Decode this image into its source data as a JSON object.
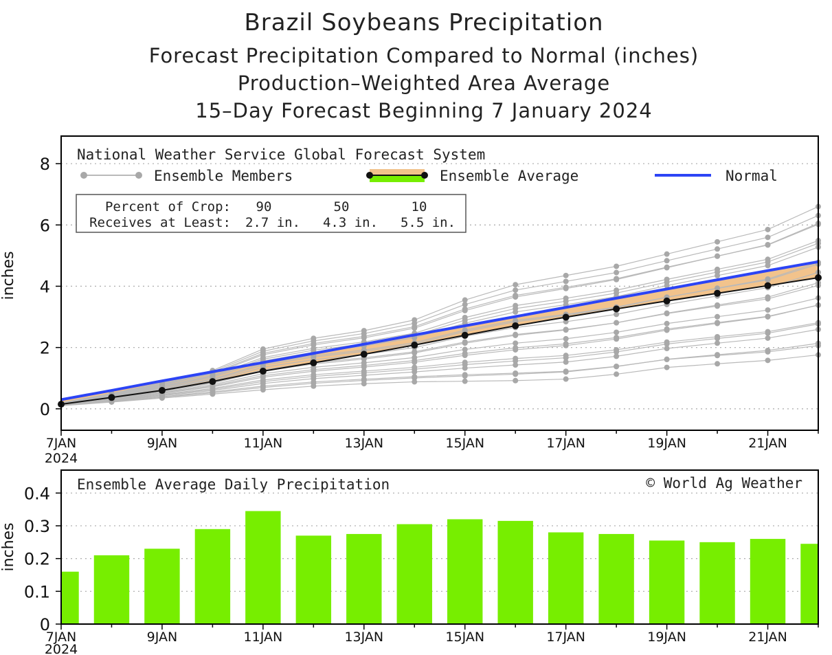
{
  "chart_data": [
    {
      "type": "line",
      "title": "Brazil Soybeans Precipitation",
      "subtitle_lines": [
        "Forecast Precipitation Compared to Normal (inches)",
        "Production–Weighted Area Average",
        "15–Day Forecast Beginning 7 January 2024"
      ],
      "ylabel": "inches",
      "ylim": [
        -0.7,
        8.9
      ],
      "yticks": [
        "0",
        "2",
        "4",
        "6",
        "8"
      ],
      "x_day_range": [
        7,
        22
      ],
      "xtick_labels": [
        "7JAN",
        "9JAN",
        "11JAN",
        "13JAN",
        "15JAN",
        "17JAN",
        "19JAN",
        "21JAN"
      ],
      "xtick_year": "2024",
      "legend": {
        "source": "National Weather Service Global Forecast System",
        "members_label": "Ensemble Members",
        "average_label": "Ensemble Average",
        "normal_label": "Normal"
      },
      "crop_table": {
        "row1_label": "Percent of Crop:",
        "row2_label": "Receives at Least:",
        "percents": [
          "90",
          "50",
          "10"
        ],
        "amounts": [
          "2.7 in.",
          "4.3 in.",
          "5.5 in."
        ]
      },
      "x": [
        7,
        8,
        9,
        10,
        11,
        12,
        13,
        14,
        15,
        16,
        17,
        18,
        19,
        20,
        21,
        22
      ],
      "series": [
        {
          "name": "Ensemble Average",
          "values": [
            0.15,
            0.37,
            0.6,
            0.89,
            1.23,
            1.5,
            1.78,
            2.08,
            2.4,
            2.71,
            2.99,
            3.26,
            3.52,
            3.77,
            4.02,
            4.28
          ]
        },
        {
          "name": "Normal",
          "values": [
            0.3,
            0.6,
            0.91,
            1.21,
            1.51,
            1.81,
            2.11,
            2.41,
            2.71,
            3.01,
            3.31,
            3.61,
            3.91,
            4.21,
            4.51,
            4.8
          ]
        },
        {
          "name": "Ensemble Max",
          "values": [
            0.2,
            0.5,
            0.85,
            1.25,
            1.95,
            2.3,
            2.55,
            2.9,
            3.55,
            4.05,
            4.35,
            4.65,
            5.05,
            5.45,
            5.85,
            6.6
          ]
        },
        {
          "name": "Ensemble Min",
          "values": [
            0.1,
            0.22,
            0.35,
            0.48,
            0.62,
            0.74,
            0.82,
            0.88,
            0.9,
            0.92,
            0.97,
            1.13,
            1.35,
            1.47,
            1.58,
            1.76
          ]
        }
      ]
    },
    {
      "type": "bar",
      "title": "Ensemble Average Daily Precipitation",
      "watermark": "© World Ag Weather",
      "ylabel": "inches",
      "ylim": [
        0,
        0.47
      ],
      "yticks": [
        "0",
        "0.1",
        "0.2",
        "0.3",
        "0.4"
      ],
      "categories": [
        "7JAN",
        "8JAN",
        "9JAN",
        "10JAN",
        "11JAN",
        "12JAN",
        "13JAN",
        "14JAN",
        "15JAN",
        "16JAN",
        "17JAN",
        "18JAN",
        "19JAN",
        "20JAN",
        "21JAN",
        "22JAN"
      ],
      "xtick_labels": [
        "7JAN",
        "9JAN",
        "11JAN",
        "13JAN",
        "15JAN",
        "17JAN",
        "19JAN",
        "21JAN"
      ],
      "xtick_year": "2024",
      "values": [
        0.16,
        0.21,
        0.23,
        0.29,
        0.345,
        0.27,
        0.275,
        0.305,
        0.32,
        0.315,
        0.28,
        0.275,
        0.255,
        0.25,
        0.26,
        0.245
      ]
    }
  ],
  "colors": {
    "normal": "#2c44f5",
    "spread_fill": "#f2c38c",
    "members": "#b9b9b9",
    "member_dot": "#a8a8a8",
    "average": "#111111",
    "bar": "#77ee00",
    "grid": "#b0b0b0",
    "frame": "#000000"
  }
}
